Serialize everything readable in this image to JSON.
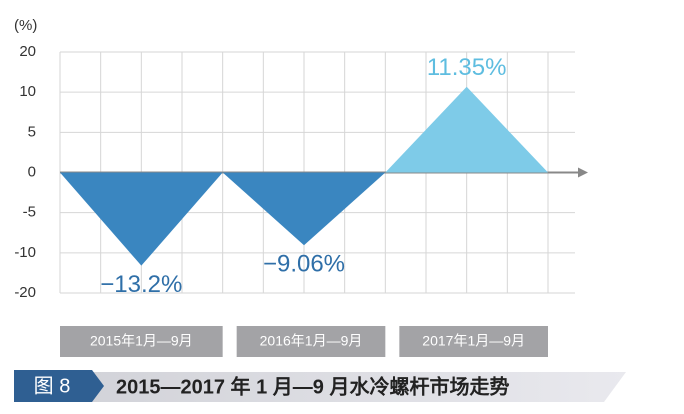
{
  "chart_data": {
    "type": "triangle",
    "y_unit": "(%)",
    "categories": [
      "2015年1月—9月",
      "2016年1月—9月",
      "2017年1月—9月"
    ],
    "values": [
      -13.2,
      -9.06,
      11.35
    ],
    "value_labels": [
      "−13.2%",
      "−9.06%",
      "11.35%"
    ],
    "colors": [
      "#3a86c0",
      "#3a86c0",
      "#7ecbe8"
    ],
    "ylim": [
      -20,
      20
    ],
    "yticks": [
      -20,
      -10,
      -5,
      0,
      5,
      10,
      20
    ],
    "grid": true,
    "figure_label": "图 8",
    "title": "2015—2017 年 1 月—9 月水冷螺杆市场走势"
  }
}
